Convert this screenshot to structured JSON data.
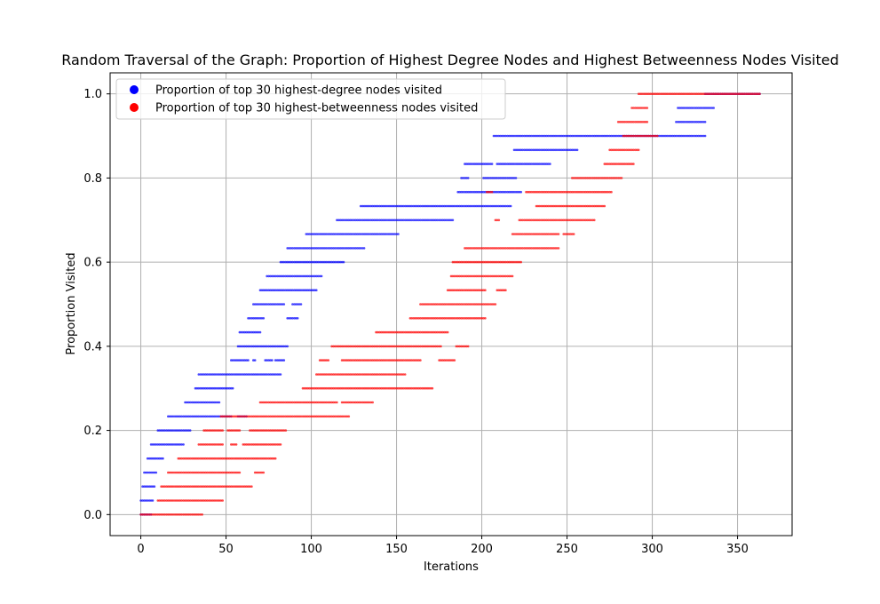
{
  "chart_data": {
    "type": "scatter",
    "title": "Random Traversal of the Graph: Proportion of Highest Degree Nodes and Highest Betweenness Nodes Visited",
    "xlabel": "Iterations",
    "ylabel": "Proportion Visited",
    "xlim": [
      -18,
      382
    ],
    "ylim": [
      -0.05,
      1.05
    ],
    "xticks": [
      0,
      50,
      100,
      150,
      200,
      250,
      300,
      350
    ],
    "yticks": [
      0.0,
      0.2,
      0.4,
      0.6,
      0.8,
      1.0
    ],
    "xtick_labels": [
      "0",
      "50",
      "100",
      "150",
      "200",
      "250",
      "300",
      "350"
    ],
    "ytick_labels": [
      "0.0",
      "0.2",
      "0.4",
      "0.6",
      "0.8",
      "1.0"
    ],
    "grid": true,
    "legend_position": "upper-left",
    "series": [
      {
        "name": "Proportion of top 30 highest-degree nodes visited",
        "color": "#0000ff",
        "segments": [
          {
            "y": 0.0,
            "x": [
              [
                0,
                6
              ]
            ]
          },
          {
            "y": 0.0333,
            "x": [
              [
                0,
                7
              ]
            ]
          },
          {
            "y": 0.0667,
            "x": [
              [
                1,
                8
              ]
            ]
          },
          {
            "y": 0.1,
            "x": [
              [
                2,
                9
              ]
            ]
          },
          {
            "y": 0.1333,
            "x": [
              [
                4,
                13
              ]
            ]
          },
          {
            "y": 0.1667,
            "x": [
              [
                6,
                25
              ]
            ]
          },
          {
            "y": 0.2,
            "x": [
              [
                10,
                29
              ]
            ]
          },
          {
            "y": 0.2333,
            "x": [
              [
                16,
                53
              ],
              [
                57,
                62
              ]
            ]
          },
          {
            "y": 0.2667,
            "x": [
              [
                26,
                46
              ]
            ]
          },
          {
            "y": 0.3,
            "x": [
              [
                32,
                54
              ]
            ]
          },
          {
            "y": 0.3333,
            "x": [
              [
                34,
                82
              ]
            ]
          },
          {
            "y": 0.3667,
            "x": [
              [
                53,
                63
              ],
              [
                66,
                67
              ],
              [
                73,
                77
              ],
              [
                79,
                84
              ]
            ]
          },
          {
            "y": 0.4,
            "x": [
              [
                57,
                86
              ]
            ]
          },
          {
            "y": 0.4333,
            "x": [
              [
                58,
                70
              ]
            ]
          },
          {
            "y": 0.4667,
            "x": [
              [
                63,
                72
              ],
              [
                86,
                92
              ]
            ]
          },
          {
            "y": 0.5,
            "x": [
              [
                66,
                84
              ],
              [
                89,
                94
              ]
            ]
          },
          {
            "y": 0.5333,
            "x": [
              [
                70,
                103
              ]
            ]
          },
          {
            "y": 0.5667,
            "x": [
              [
                74,
                106
              ]
            ]
          },
          {
            "y": 0.6,
            "x": [
              [
                82,
                119
              ]
            ]
          },
          {
            "y": 0.6333,
            "x": [
              [
                86,
                131
              ]
            ]
          },
          {
            "y": 0.6667,
            "x": [
              [
                97,
                151
              ]
            ]
          },
          {
            "y": 0.7,
            "x": [
              [
                115,
                183
              ]
            ]
          },
          {
            "y": 0.7333,
            "x": [
              [
                129,
                217
              ]
            ]
          },
          {
            "y": 0.7667,
            "x": [
              [
                186,
                223
              ]
            ]
          },
          {
            "y": 0.8,
            "x": [
              [
                188,
                192
              ],
              [
                201,
                220
              ]
            ]
          },
          {
            "y": 0.8333,
            "x": [
              [
                190,
                206
              ],
              [
                209,
                240
              ]
            ]
          },
          {
            "y": 0.8667,
            "x": [
              [
                219,
                256
              ]
            ]
          },
          {
            "y": 0.9,
            "x": [
              [
                207,
                331
              ]
            ]
          },
          {
            "y": 0.9333,
            "x": [
              [
                314,
                331
              ]
            ]
          },
          {
            "y": 0.9667,
            "x": [
              [
                315,
                336
              ]
            ]
          },
          {
            "y": 1.0,
            "x": [
              [
                331,
                363
              ]
            ]
          }
        ]
      },
      {
        "name": "Proportion of top 30 highest-betweenness nodes visited",
        "color": "#ff0000",
        "segments": [
          {
            "y": 0.0,
            "x": [
              [
                0,
                36
              ]
            ]
          },
          {
            "y": 0.0333,
            "x": [
              [
                10,
                48
              ]
            ]
          },
          {
            "y": 0.0667,
            "x": [
              [
                12,
                65
              ]
            ]
          },
          {
            "y": 0.1,
            "x": [
              [
                16,
                58
              ],
              [
                67,
                72
              ]
            ]
          },
          {
            "y": 0.1333,
            "x": [
              [
                22,
                79
              ]
            ]
          },
          {
            "y": 0.1667,
            "x": [
              [
                34,
                48
              ],
              [
                53,
                56
              ],
              [
                60,
                82
              ]
            ]
          },
          {
            "y": 0.2,
            "x": [
              [
                37,
                48
              ],
              [
                51,
                58
              ],
              [
                64,
                85
              ]
            ]
          },
          {
            "y": 0.2333,
            "x": [
              [
                47,
                122
              ]
            ]
          },
          {
            "y": 0.2667,
            "x": [
              [
                70,
                115
              ],
              [
                118,
                136
              ]
            ]
          },
          {
            "y": 0.3,
            "x": [
              [
                95,
                171
              ]
            ]
          },
          {
            "y": 0.3333,
            "x": [
              [
                103,
                155
              ]
            ]
          },
          {
            "y": 0.3667,
            "x": [
              [
                105,
                110
              ],
              [
                118,
                164
              ],
              [
                175,
                184
              ]
            ]
          },
          {
            "y": 0.4,
            "x": [
              [
                112,
                176
              ],
              [
                185,
                192
              ]
            ]
          },
          {
            "y": 0.4333,
            "x": [
              [
                138,
                180
              ]
            ]
          },
          {
            "y": 0.4667,
            "x": [
              [
                158,
                202
              ]
            ]
          },
          {
            "y": 0.5,
            "x": [
              [
                164,
                208
              ]
            ]
          },
          {
            "y": 0.5333,
            "x": [
              [
                180,
                202
              ],
              [
                209,
                214
              ]
            ]
          },
          {
            "y": 0.5667,
            "x": [
              [
                182,
                218
              ]
            ]
          },
          {
            "y": 0.6,
            "x": [
              [
                183,
                223
              ]
            ]
          },
          {
            "y": 0.6333,
            "x": [
              [
                190,
                245
              ]
            ]
          },
          {
            "y": 0.6667,
            "x": [
              [
                218,
                245
              ],
              [
                248,
                254
              ]
            ]
          },
          {
            "y": 0.7,
            "x": [
              [
                208,
                210
              ],
              [
                222,
                266
              ]
            ]
          },
          {
            "y": 0.7333,
            "x": [
              [
                232,
                272
              ]
            ]
          },
          {
            "y": 0.7667,
            "x": [
              [
                203,
                206
              ],
              [
                226,
                276
              ]
            ]
          },
          {
            "y": 0.8,
            "x": [
              [
                253,
                282
              ]
            ]
          },
          {
            "y": 0.8333,
            "x": [
              [
                272,
                289
              ]
            ]
          },
          {
            "y": 0.8667,
            "x": [
              [
                275,
                292
              ]
            ]
          },
          {
            "y": 0.9,
            "x": [
              [
                283,
                303
              ]
            ]
          },
          {
            "y": 0.9333,
            "x": [
              [
                280,
                297
              ]
            ]
          },
          {
            "y": 0.9667,
            "x": [
              [
                288,
                297
              ]
            ]
          },
          {
            "y": 1.0,
            "x": [
              [
                292,
                363
              ]
            ]
          }
        ]
      }
    ]
  }
}
